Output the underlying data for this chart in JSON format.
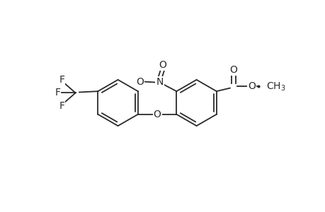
{
  "bg_color": "#ffffff",
  "line_color": "#2a2a2a",
  "line_width": 1.3,
  "font_size": 10,
  "figsize": [
    4.6,
    3.0
  ],
  "dpi": 100,
  "xlim": [
    0,
    10
  ],
  "ylim": [
    0,
    6.5
  ]
}
